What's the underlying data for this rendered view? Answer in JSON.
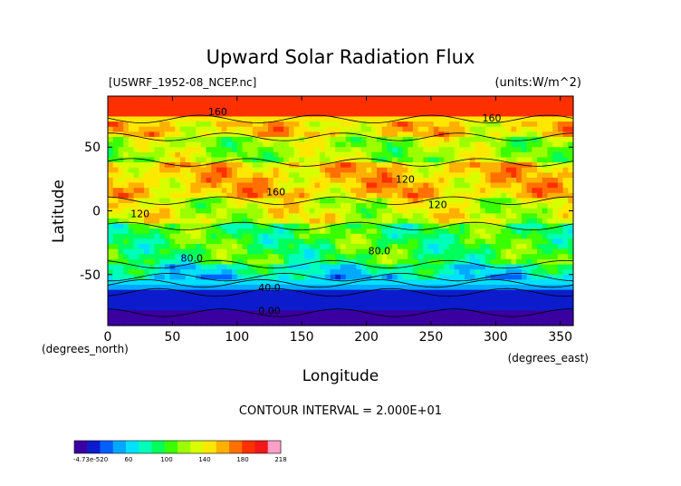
{
  "chart_data": {
    "type": "heatmap",
    "title": "Upward Solar Radiation Flux",
    "file_label": "[USWRF_1952-08_NCEP.nc]",
    "units_label": "(units:W/m^2)",
    "xlabel": "Longitude",
    "ylabel": "Latitude",
    "x_unit_note": "(degrees_east)",
    "y_unit_note": "(degrees_north)",
    "xlim": [
      0,
      360
    ],
    "ylim": [
      -90,
      90
    ],
    "x_ticks": [
      0,
      50,
      100,
      150,
      200,
      250,
      300,
      350
    ],
    "y_ticks": [
      -50,
      0,
      50
    ],
    "contour_interval_label": "CONTOUR INTERVAL = 2.000E+01",
    "contour_labels": [
      {
        "text": "160",
        "lon": 85,
        "lat": 75
      },
      {
        "text": "160",
        "lon": 297,
        "lat": 70
      },
      {
        "text": "160",
        "lon": 130,
        "lat": 12
      },
      {
        "text": "120",
        "lon": 230,
        "lat": 22
      },
      {
        "text": "120",
        "lon": 255,
        "lat": 2
      },
      {
        "text": "120",
        "lon": 25,
        "lat": -5
      },
      {
        "text": "80.0",
        "lon": 65,
        "lat": -40
      },
      {
        "text": "80.0",
        "lon": 210,
        "lat": -34
      },
      {
        "text": "40.0",
        "lon": 125,
        "lat": -63
      },
      {
        "text": "0.00",
        "lon": 125,
        "lat": -81
      }
    ],
    "colorbar": {
      "tick_labels": [
        "-4.73e-520",
        "60",
        "100",
        "140",
        "180",
        "218"
      ],
      "min": 0,
      "max": 218
    },
    "palette": [
      "#3a00a0",
      "#0c1ccc",
      "#0060ff",
      "#00a8ff",
      "#00e0ff",
      "#00ffb8",
      "#00ff5a",
      "#3aff00",
      "#9cff00",
      "#d8ff00",
      "#ffe800",
      "#ffb000",
      "#ff7000",
      "#ff3000",
      "#f01818",
      "#ffa0c8"
    ]
  }
}
